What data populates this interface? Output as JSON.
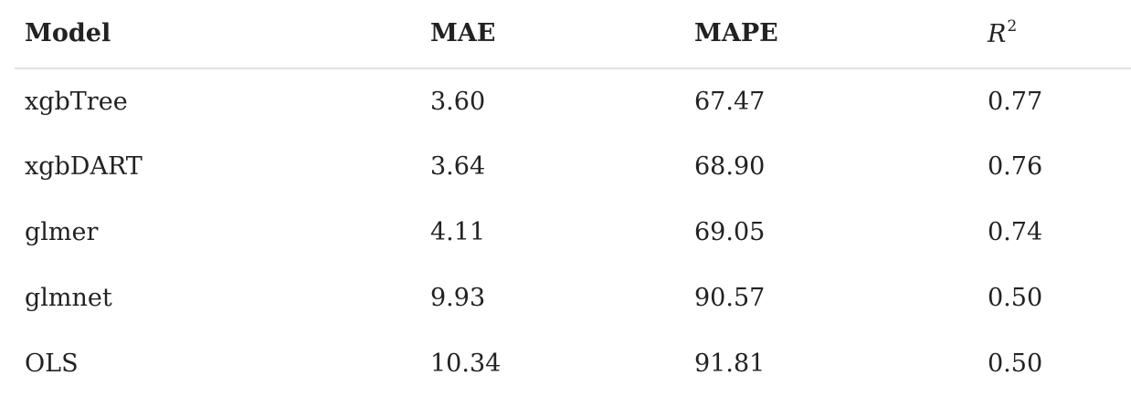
{
  "table": {
    "headers": {
      "model": "Model",
      "mae": "MAE",
      "mape": "MAPE",
      "r2_base": "R",
      "r2_exponent": "2"
    },
    "rows": [
      {
        "model": "xgbTree",
        "mae": "3.60",
        "mape": "67.47",
        "r2": "0.77"
      },
      {
        "model": "xgbDART",
        "mae": "3.64",
        "mape": "68.90",
        "r2": "0.76"
      },
      {
        "model": "glmer",
        "mae": "4.11",
        "mape": "69.05",
        "r2": "0.74"
      },
      {
        "model": "glmnet",
        "mae": "9.93",
        "mape": "90.57",
        "r2": "0.50"
      },
      {
        "model": "OLS",
        "mae": "10.34",
        "mape": "91.81",
        "r2": "0.50"
      }
    ]
  }
}
